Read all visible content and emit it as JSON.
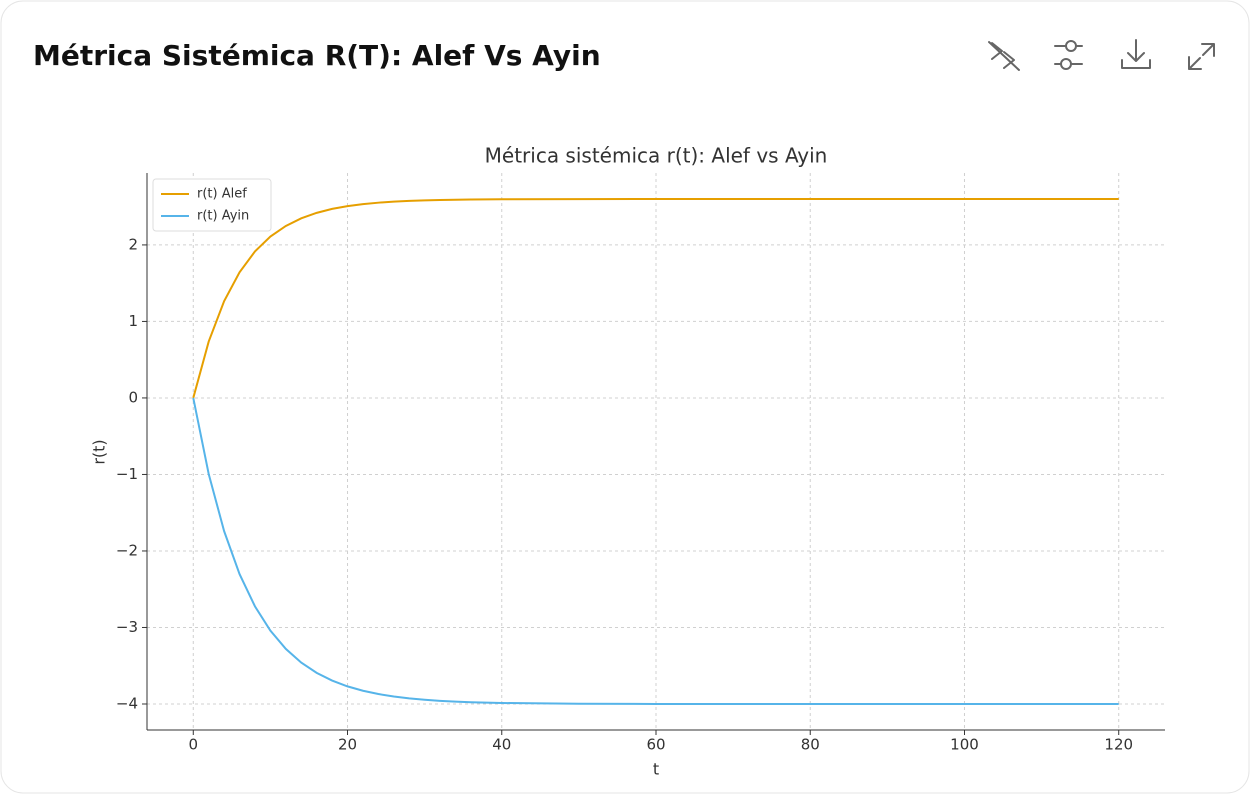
{
  "header": {
    "title": "Métrica Sistémica R(T): Alef Vs Ayin"
  },
  "chart_data": {
    "type": "line",
    "title": "Métrica sistémica r(t): Alef vs Ayin",
    "x_label": "t",
    "y_label": "r(t)",
    "x": [
      0,
      2,
      4,
      6,
      8,
      10,
      12,
      14,
      16,
      18,
      20,
      22,
      24,
      26,
      28,
      30,
      32,
      34,
      36,
      38,
      40,
      50,
      60,
      70,
      80,
      90,
      100,
      110,
      120
    ],
    "series": [
      {
        "name": "r(t) Alef",
        "color": "#e69f00",
        "values": [
          0,
          0.737,
          1.265,
          1.643,
          1.915,
          2.109,
          2.248,
          2.348,
          2.419,
          2.471,
          2.507,
          2.533,
          2.552,
          2.566,
          2.576,
          2.583,
          2.587,
          2.591,
          2.594,
          2.595,
          2.597,
          2.599,
          2.6,
          2.6,
          2.6,
          2.6,
          2.6,
          2.6,
          2.6
        ]
      },
      {
        "name": "r(t) Ayin",
        "color": "#56b4e9",
        "values": [
          0,
          -0.994,
          -1.741,
          -2.302,
          -2.724,
          -3.041,
          -3.28,
          -3.459,
          -3.593,
          -3.694,
          -3.77,
          -3.827,
          -3.87,
          -3.902,
          -3.927,
          -3.945,
          -3.959,
          -3.969,
          -3.977,
          -3.982,
          -3.987,
          -3.997,
          -4,
          -4,
          -4,
          -4,
          -4,
          -4,
          -4
        ]
      }
    ],
    "xlim": [
      -6,
      126
    ],
    "ylim": [
      -4.34,
      2.94
    ],
    "xticks": [
      0,
      20,
      40,
      60,
      80,
      100,
      120
    ],
    "yticks": [
      {
        "value": -4,
        "label": "−4"
      },
      {
        "value": -3,
        "label": "−3"
      },
      {
        "value": -2,
        "label": "−2"
      },
      {
        "value": -1,
        "label": "−1"
      },
      0,
      1,
      2
    ],
    "grid": true,
    "legend": "upper-left"
  }
}
